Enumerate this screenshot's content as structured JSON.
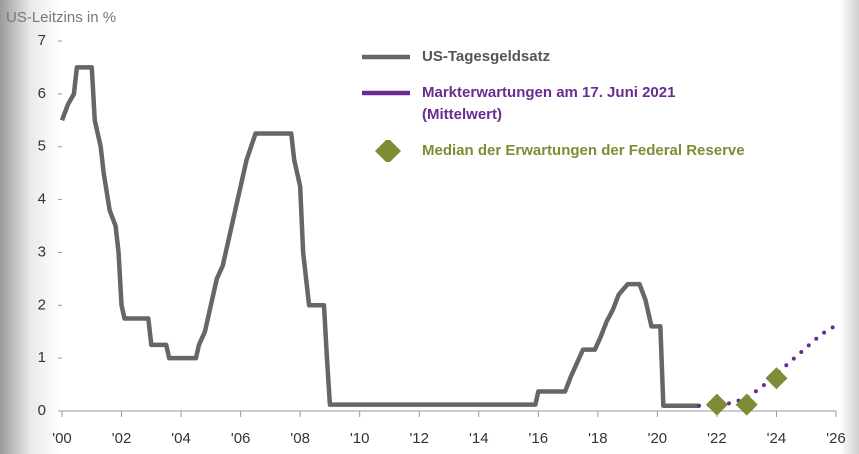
{
  "chart_data": {
    "type": "line",
    "ylabel": "US-Leitzins in %",
    "xlim": [
      2000,
      2026
    ],
    "ylim": [
      0,
      7
    ],
    "xticks": [
      {
        "value": 2000,
        "label": "'00"
      },
      {
        "value": 2002,
        "label": "'02"
      },
      {
        "value": 2004,
        "label": "'04"
      },
      {
        "value": 2006,
        "label": "'06"
      },
      {
        "value": 2008,
        "label": "'08"
      },
      {
        "value": 2010,
        "label": "'10"
      },
      {
        "value": 2012,
        "label": "'12"
      },
      {
        "value": 2014,
        "label": "'14"
      },
      {
        "value": 2016,
        "label": "'16"
      },
      {
        "value": 2018,
        "label": "'18"
      },
      {
        "value": 2020,
        "label": "'20"
      },
      {
        "value": 2022,
        "label": "'22"
      },
      {
        "value": 2024,
        "label": "'24"
      },
      {
        "value": 2026,
        "label": "'26"
      }
    ],
    "yticks": [
      0,
      1,
      2,
      3,
      4,
      5,
      6,
      7
    ],
    "series": [
      {
        "name": "US-Tagesgeldsatz",
        "color": "#666666",
        "style": "solid",
        "x": [
          2000.0,
          2000.2,
          2000.4,
          2000.5,
          2001.0,
          2001.1,
          2001.3,
          2001.4,
          2001.6,
          2001.8,
          2001.9,
          2002.0,
          2002.1,
          2002.9,
          2003.0,
          2003.5,
          2003.6,
          2004.5,
          2004.6,
          2004.8,
          2004.9,
          2005.0,
          2005.2,
          2005.4,
          2005.6,
          2005.8,
          2006.0,
          2006.2,
          2006.5,
          2007.7,
          2007.8,
          2008.0,
          2008.1,
          2008.3,
          2008.8,
          2008.9,
          2009.0,
          2015.9,
          2016.0,
          2016.9,
          2017.1,
          2017.3,
          2017.5,
          2017.9,
          2018.1,
          2018.3,
          2018.5,
          2018.7,
          2019.0,
          2019.4,
          2019.6,
          2019.8,
          2020.1,
          2020.2,
          2021.4
        ],
        "values": [
          5.5,
          5.8,
          6.0,
          6.5,
          6.5,
          5.5,
          5.0,
          4.5,
          3.8,
          3.5,
          3.0,
          2.0,
          1.75,
          1.75,
          1.25,
          1.25,
          1.0,
          1.0,
          1.25,
          1.5,
          1.75,
          2.0,
          2.5,
          2.75,
          3.25,
          3.75,
          4.25,
          4.75,
          5.25,
          5.25,
          4.75,
          4.25,
          3.0,
          2.0,
          2.0,
          1.0,
          0.12,
          0.12,
          0.37,
          0.37,
          0.66,
          0.91,
          1.16,
          1.16,
          1.41,
          1.7,
          1.91,
          2.2,
          2.4,
          2.4,
          2.1,
          1.6,
          1.6,
          0.1,
          0.1
        ]
      },
      {
        "name": "Markterwartungen am 17. Juni 2021 (Mittelwert)",
        "color": "#6a2c91",
        "style": "dotted",
        "x": [
          2021.4,
          2022,
          2022.5,
          2023,
          2023.5,
          2024,
          2024.5,
          2025,
          2025.5,
          2026
        ],
        "values": [
          0.1,
          0.12,
          0.15,
          0.25,
          0.45,
          0.7,
          0.95,
          1.2,
          1.45,
          1.62
        ]
      },
      {
        "name": "Median der Erwartungen der Federal Reserve",
        "color": "#7f8c34",
        "style": "diamond",
        "x": [
          2022,
          2023,
          2024
        ],
        "values": [
          0.12,
          0.12,
          0.62
        ]
      }
    ]
  }
}
